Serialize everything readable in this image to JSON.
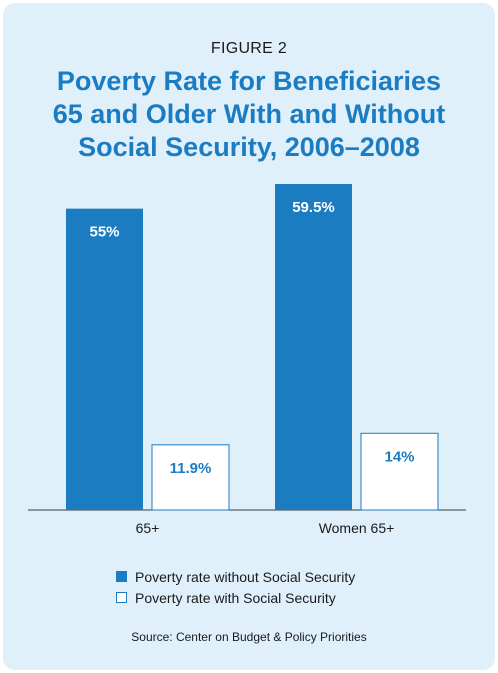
{
  "figure_label": "FIGURE 2",
  "title_lines": [
    "Poverty Rate for Beneficiaries",
    "65 and Older With and Without",
    "Social Security, 2006–2008"
  ],
  "source": "Source: Center on Budget & Policy Priorities",
  "colors": {
    "accent": "#1b7cc1",
    "background": "#dff0fb",
    "bar_outline": "#1b7cc1"
  },
  "chart_data": {
    "type": "bar",
    "title": "Poverty Rate for Beneficiaries 65 and Older With and Without Social Security, 2006–2008",
    "categories": [
      "65+",
      "Women 65+"
    ],
    "series": [
      {
        "name": "Poverty rate without Social Security",
        "values": [
          55,
          59.5
        ],
        "labels": [
          "55%",
          "59.5%"
        ],
        "fill": "#1b7cc1"
      },
      {
        "name": "Poverty rate with Social Security",
        "values": [
          11.9,
          14
        ],
        "labels": [
          "11.9%",
          "14%"
        ],
        "fill": "#ffffff"
      }
    ],
    "ylim": [
      0,
      59.5
    ],
    "grid": false,
    "legend_position": "bottom"
  }
}
